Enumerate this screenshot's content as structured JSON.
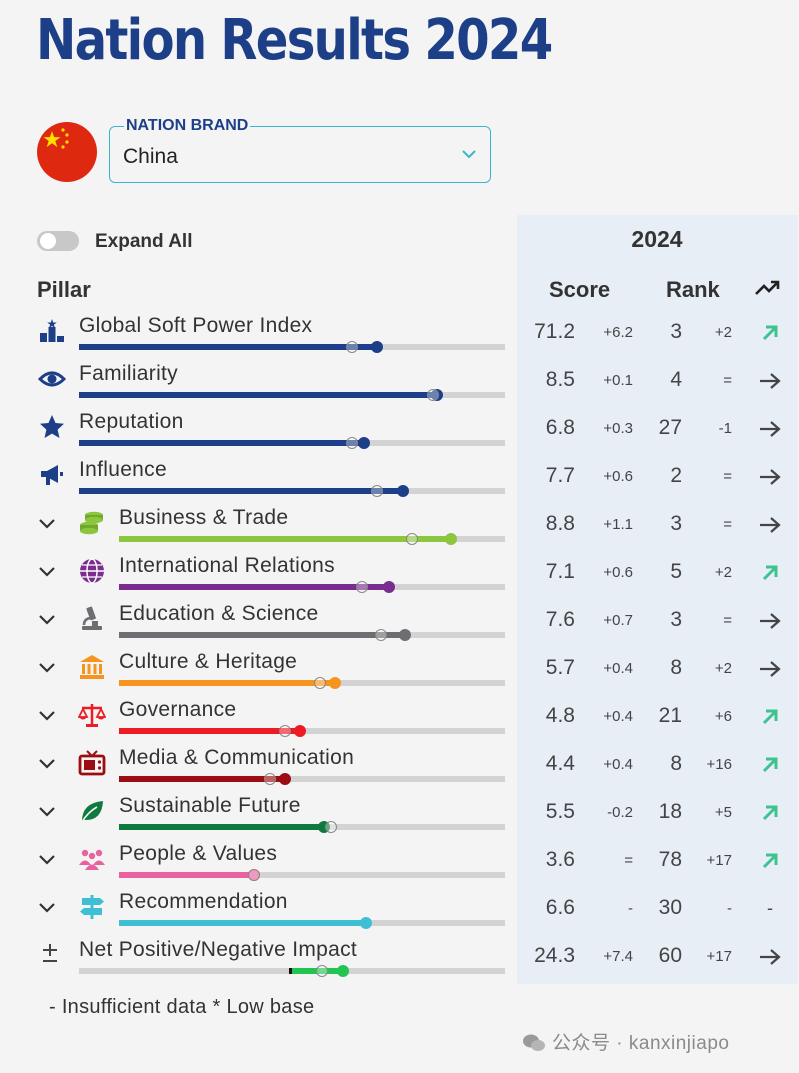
{
  "title": "Nation Results 2024",
  "brand_select": {
    "label": "NATION BRAND",
    "value": "China"
  },
  "flag_icon": "china-flag-icon",
  "expand_all": {
    "label": "Expand All",
    "checked": false
  },
  "columns": {
    "pillar": "Pillar",
    "year": "2024",
    "score": "Score",
    "rank": "Rank",
    "trend_icon": "trend-icon"
  },
  "colors": {
    "navy": "#1c3f87",
    "business": "#8cc63f",
    "international": "#7b2d8e",
    "education": "#6d6e71",
    "culture": "#f7941d",
    "governance": "#ed1c24",
    "media": "#9b0d12",
    "sustainable": "#0e7a3e",
    "people": "#e7629f",
    "recommendation": "#3fbfd3",
    "impact_neg": "#111111",
    "impact_pos": "#23c552",
    "up_arrow": "#3ec28f",
    "flat_arrow": "#444444"
  },
  "rows": [
    {
      "id": "gspi",
      "label": "Global Soft Power Index",
      "icon": "podium-icon",
      "expandable": false,
      "color": "#1c3f87",
      "current": 0.7,
      "previous": 0.64,
      "score": "71.2",
      "score_delta": "+6.2",
      "rank": "3",
      "rank_delta": "+2",
      "trend": "up"
    },
    {
      "id": "familiarity",
      "label": "Familiarity",
      "icon": "eye-icon",
      "expandable": false,
      "color": "#1c3f87",
      "current": 0.84,
      "previous": 0.83,
      "score": "8.5",
      "score_delta": "+0.1",
      "rank": "4",
      "rank_delta": "=",
      "trend": "flat"
    },
    {
      "id": "reputation",
      "label": "Reputation",
      "icon": "star-icon",
      "expandable": false,
      "color": "#1c3f87",
      "current": 0.67,
      "previous": 0.64,
      "score": "6.8",
      "score_delta": "+0.3",
      "rank": "27",
      "rank_delta": "-1",
      "trend": "flat"
    },
    {
      "id": "influence",
      "label": "Influence",
      "icon": "megaphone-icon",
      "expandable": false,
      "color": "#1c3f87",
      "current": 0.76,
      "previous": 0.7,
      "score": "7.7",
      "score_delta": "+0.6",
      "rank": "2",
      "rank_delta": "=",
      "trend": "flat"
    },
    {
      "id": "business",
      "label": "Business & Trade",
      "icon": "coins-icon",
      "expandable": true,
      "color": "#8cc63f",
      "current": 0.86,
      "previous": 0.76,
      "score": "8.8",
      "score_delta": "+1.1",
      "rank": "3",
      "rank_delta": "=",
      "trend": "flat"
    },
    {
      "id": "international",
      "label": "International Relations",
      "icon": "globe-icon",
      "expandable": true,
      "color": "#7b2d8e",
      "current": 0.7,
      "previous": 0.63,
      "score": "7.1",
      "score_delta": "+0.6",
      "rank": "5",
      "rank_delta": "+2",
      "trend": "up"
    },
    {
      "id": "education",
      "label": "Education & Science",
      "icon": "microscope-icon",
      "expandable": true,
      "color": "#6d6e71",
      "current": 0.74,
      "previous": 0.68,
      "score": "7.6",
      "score_delta": "+0.7",
      "rank": "3",
      "rank_delta": "=",
      "trend": "flat"
    },
    {
      "id": "culture",
      "label": "Culture & Heritage",
      "icon": "museum-icon",
      "expandable": true,
      "color": "#f7941d",
      "current": 0.56,
      "previous": 0.52,
      "score": "5.7",
      "score_delta": "+0.4",
      "rank": "8",
      "rank_delta": "+2",
      "trend": "flat"
    },
    {
      "id": "governance",
      "label": "Governance",
      "icon": "scales-icon",
      "expandable": true,
      "color": "#ed1c24",
      "current": 0.47,
      "previous": 0.43,
      "score": "4.8",
      "score_delta": "+0.4",
      "rank": "21",
      "rank_delta": "+6",
      "trend": "up"
    },
    {
      "id": "media",
      "label": "Media & Communication",
      "icon": "tv-icon",
      "expandable": true,
      "color": "#9b0d12",
      "current": 0.43,
      "previous": 0.39,
      "score": "4.4",
      "score_delta": "+0.4",
      "rank": "8",
      "rank_delta": "+16",
      "trend": "up"
    },
    {
      "id": "sustainable",
      "label": "Sustainable Future",
      "icon": "leaf-icon",
      "expandable": true,
      "color": "#0e7a3e",
      "current": 0.53,
      "previous": 0.55,
      "score": "5.5",
      "score_delta": "-0.2",
      "rank": "18",
      "rank_delta": "+5",
      "trend": "up"
    },
    {
      "id": "people",
      "label": "People & Values",
      "icon": "people-icon",
      "expandable": true,
      "color": "#e7629f",
      "current": 0.35,
      "previous": 0.35,
      "score": "3.6",
      "score_delta": "=",
      "rank": "78",
      "rank_delta": "+17",
      "trend": "up"
    },
    {
      "id": "recommendation",
      "label": "Recommendation",
      "icon": "signpost-icon",
      "expandable": true,
      "color": "#3fbfd3",
      "current": 0.64,
      "previous": null,
      "score": "6.6",
      "score_delta": "-",
      "rank": "30",
      "rank_delta": "-",
      "trend": "none"
    },
    {
      "id": "impact",
      "label": "Net Positive/Negative Impact",
      "icon": "plus-minus-icon",
      "expandable": false,
      "color": "#23c552",
      "current": 0.62,
      "previous": 0.57,
      "zero": 0.5,
      "score": "24.3",
      "score_delta": "+7.4",
      "rank": "60",
      "rank_delta": "+17",
      "trend": "flat"
    }
  ],
  "footnote": "- Insufficient data  * Low base",
  "watermark": "公众号 · kanxinjiapo"
}
